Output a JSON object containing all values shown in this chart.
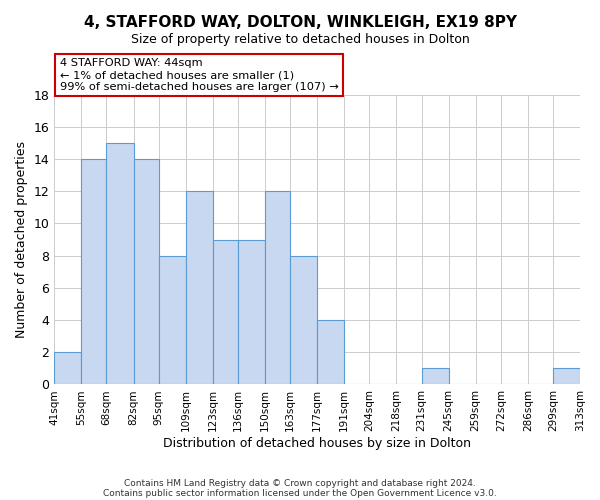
{
  "title": "4, STAFFORD WAY, DOLTON, WINKLEIGH, EX19 8PY",
  "subtitle": "Size of property relative to detached houses in Dolton",
  "xlabel": "Distribution of detached houses by size in Dolton",
  "ylabel": "Number of detached properties",
  "bar_edges": [
    41,
    55,
    68,
    82,
    95,
    109,
    123,
    136,
    150,
    163,
    177,
    191,
    204,
    218,
    231,
    245,
    259,
    272,
    286,
    299,
    313
  ],
  "bar_heights": [
    2,
    14,
    15,
    14,
    8,
    12,
    9,
    9,
    12,
    8,
    4,
    0,
    0,
    0,
    1,
    0,
    0,
    0,
    0,
    1
  ],
  "tick_labels": [
    "41sqm",
    "55sqm",
    "68sqm",
    "82sqm",
    "95sqm",
    "109sqm",
    "123sqm",
    "136sqm",
    "150sqm",
    "163sqm",
    "177sqm",
    "191sqm",
    "204sqm",
    "218sqm",
    "231sqm",
    "245sqm",
    "259sqm",
    "272sqm",
    "286sqm",
    "299sqm",
    "313sqm"
  ],
  "bar_face_color": "#c8d8f0",
  "bar_edge_color": "#5b9bd5",
  "annotation_title": "4 STAFFORD WAY: 44sqm",
  "annotation_line1": "← 1% of detached houses are smaller (1)",
  "annotation_line2": "99% of semi-detached houses are larger (107) →",
  "annotation_box_color": "#ffffff",
  "annotation_border_color": "#cc0000",
  "ylim": [
    0,
    18
  ],
  "yticks": [
    0,
    2,
    4,
    6,
    8,
    10,
    12,
    14,
    16,
    18
  ],
  "footer1": "Contains HM Land Registry data © Crown copyright and database right 2024.",
  "footer2": "Contains public sector information licensed under the Open Government Licence v3.0.",
  "bg_color": "#ffffff",
  "grid_color": "#cccccc"
}
